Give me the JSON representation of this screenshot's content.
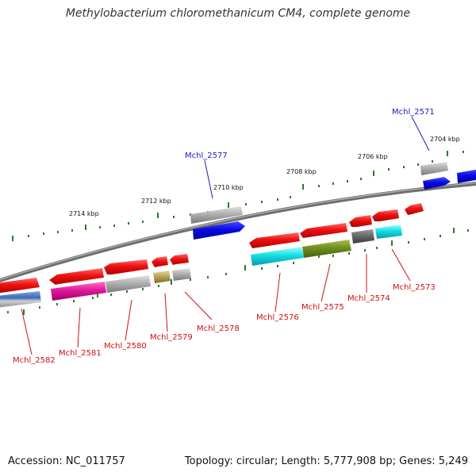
{
  "title": "Methylobacterium chloromethanicum CM4, complete genome",
  "footer": {
    "accession": "Accession: NC_011757",
    "topology": "Topology: circular; Length: 5,777,908 bp; Genes: 5,249"
  },
  "kbp_labels": [
    "2714 kbp",
    "2712 kbp",
    "2710 kbp",
    "2708 kbp",
    "2706 kbp",
    "2704 kbp"
  ],
  "genes_top": [
    {
      "id": "Mchl_2577"
    },
    {
      "id": "Mchl_2571"
    }
  ],
  "genes_bottom": [
    {
      "id": "Mchl_2582"
    },
    {
      "id": "Mchl_2581"
    },
    {
      "id": "Mchl_2580"
    },
    {
      "id": "Mchl_2579"
    },
    {
      "id": "Mchl_2578"
    },
    {
      "id": "Mchl_2576"
    },
    {
      "id": "Mchl_2575"
    },
    {
      "id": "Mchl_2574"
    },
    {
      "id": "Mchl_2573"
    }
  ],
  "colors": {
    "forward_label": "#1a1ac8",
    "reverse_label": "#cc1111",
    "red": "#ee1111",
    "blue": "#0a0ae6",
    "grey": "#a8a8a8",
    "cyan": "#11e0e6",
    "olive": "#6f8f1f",
    "magenta": "#e0189a",
    "khaki": "#b8a65a",
    "tick": "#2a7a2a"
  }
}
